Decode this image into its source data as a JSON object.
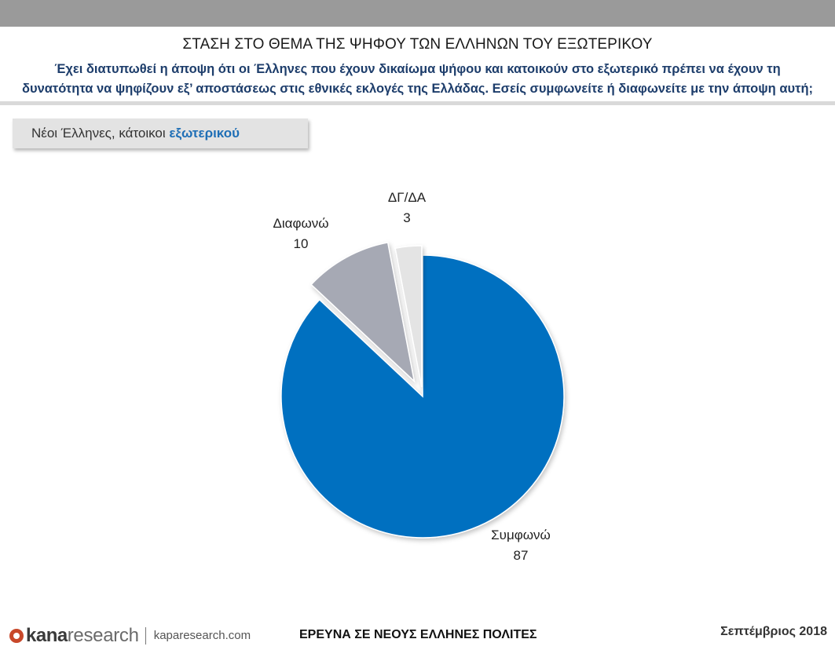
{
  "header": {
    "title": "ΣΤΑΣΗ ΣΤΟ ΘΕΜΑ ΤΗΣ ΨΗΦΟΥ ΤΩΝ ΕΛΛΗΝΩΝ ΤΟΥ ΕΞΩΤΕΡΙΚΟΥ",
    "question_line1": "Έχει διατυπωθεί η άποψη ότι οι Έλληνες που έχουν δικαίωμα ψήφου και κατοικούν στο εξωτερικό πρέπει να έχουν τη",
    "question_line2": "δυνατότητα να ψηφίζουν εξ’ αποστάσεως στις εθνικές εκλογές της Ελλάδας. Εσείς συμφωνείτε ή διαφωνείτε με την άποψη αυτή;"
  },
  "segment": {
    "prefix": "Νέοι Έλληνες, κάτοικοι ",
    "highlight": "εξωτερικού"
  },
  "chart_data": {
    "type": "pie",
    "title": "",
    "slices": [
      {
        "label": "Συμφωνώ",
        "value": 87,
        "color": "#0070c0"
      },
      {
        "label": "Διαφωνώ",
        "value": 10,
        "color": "#a6a9b4"
      },
      {
        "label": "ΔΓ/ΔΑ",
        "value": 3,
        "color": "#e4e4e4"
      }
    ]
  },
  "footer": {
    "logo_kana": "kana",
    "logo_research": "research",
    "url": "kaparesearch.com",
    "center": "ΕΡΕΥΝΑ ΣΕ ΝΕΟΥΣ ΕΛΛΗΝΕΣ ΠΟΛΙΤΕΣ",
    "date": "Σεπτέμβριος 2018"
  }
}
